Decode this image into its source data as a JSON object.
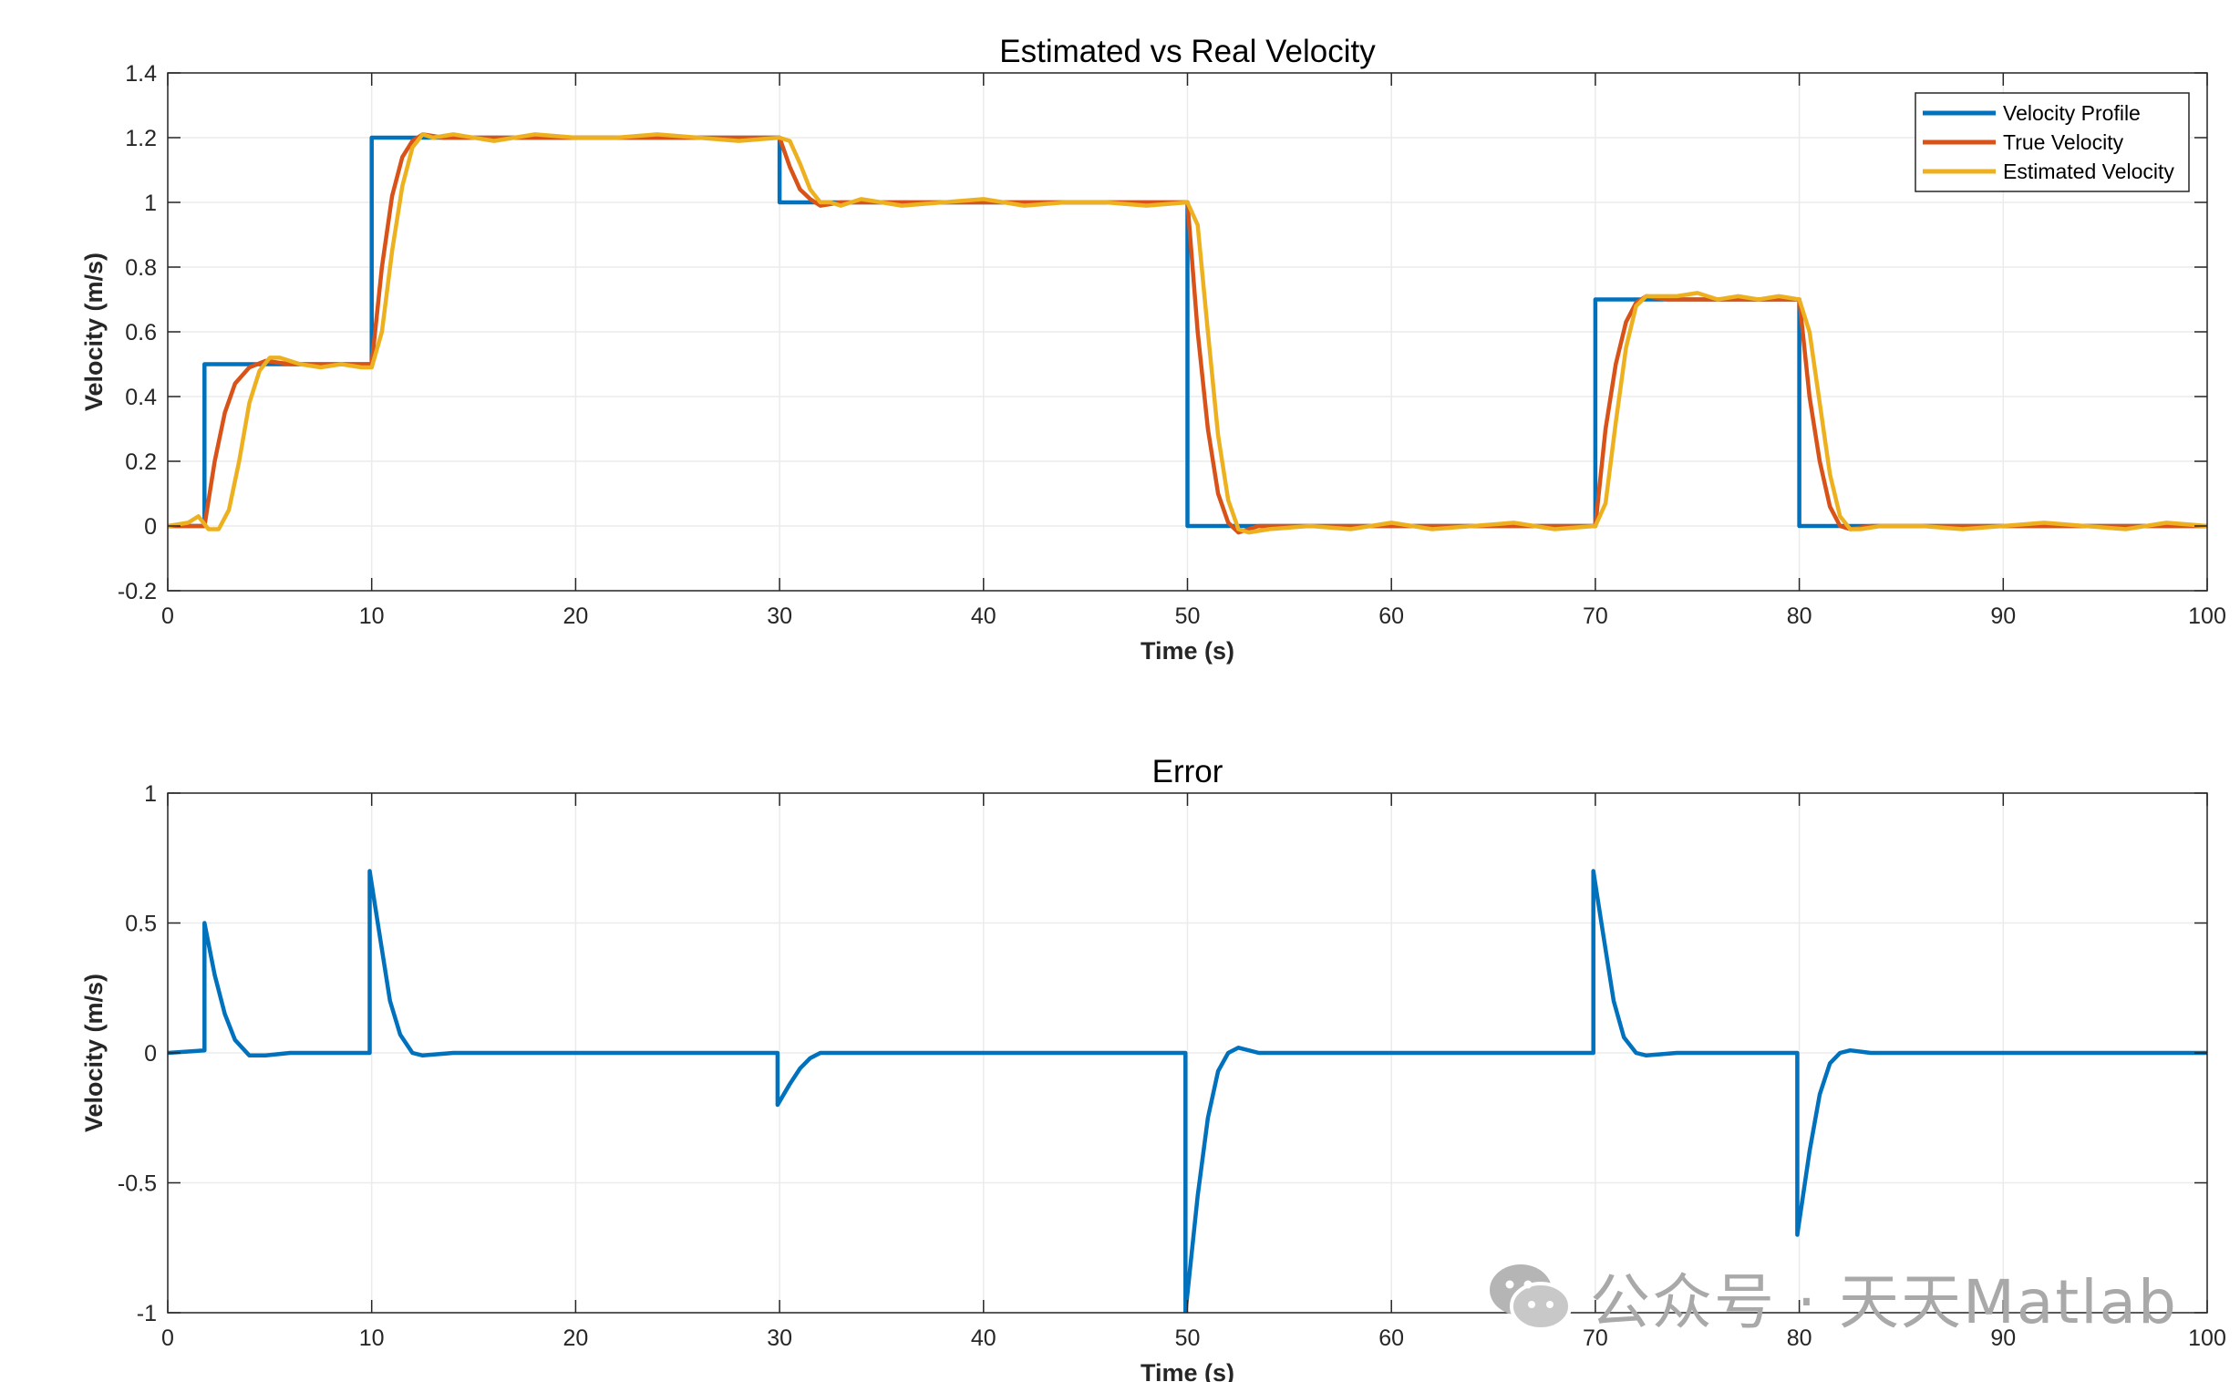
{
  "chart_data": [
    {
      "type": "line",
      "title": "Estimated vs Real Velocity",
      "xlabel": "Time (s)",
      "ylabel": "Velocity (m/s)",
      "xlim": [
        0,
        100
      ],
      "ylim": [
        -0.2,
        1.4
      ],
      "xticks": [
        "0",
        "10",
        "20",
        "30",
        "40",
        "50",
        "60",
        "70",
        "80",
        "90",
        "100"
      ],
      "yticks": [
        "-0.2",
        "0",
        "0.2",
        "0.4",
        "0.6",
        "0.8",
        "1",
        "1.2",
        "1.4"
      ],
      "grid": true,
      "legend_position": "top-right",
      "series": [
        {
          "name": "Velocity Profile",
          "color": "#0072BD",
          "x": [
            0,
            1.8,
            1.8,
            10,
            10,
            30,
            30,
            50,
            50,
            70,
            70,
            80,
            80,
            100
          ],
          "y": [
            0,
            0,
            0.5,
            0.5,
            1.2,
            1.2,
            1.0,
            1.0,
            0,
            0,
            0.7,
            0.7,
            0,
            0
          ]
        },
        {
          "name": "True Velocity",
          "color": "#D95319",
          "x": [
            0,
            1.8,
            2.3,
            2.8,
            3.3,
            4.0,
            4.8,
            6,
            10,
            10.5,
            11.0,
            11.5,
            12.0,
            12.5,
            13.5,
            30,
            30.5,
            31.0,
            31.5,
            32.0,
            33,
            50,
            50.5,
            51.0,
            51.5,
            52.0,
            52.5,
            53.5,
            70,
            70.5,
            71.0,
            71.5,
            72.0,
            72.5,
            73.5,
            80,
            80.5,
            81.0,
            81.5,
            82.0,
            82.5,
            83.5,
            100
          ],
          "y": [
            0,
            0,
            0.2,
            0.35,
            0.44,
            0.49,
            0.51,
            0.5,
            0.5,
            0.8,
            1.02,
            1.14,
            1.19,
            1.21,
            1.2,
            1.2,
            1.11,
            1.04,
            1.01,
            0.99,
            1.0,
            1.0,
            0.6,
            0.3,
            0.1,
            0.01,
            -0.02,
            0,
            0,
            0.3,
            0.5,
            0.63,
            0.69,
            0.71,
            0.7,
            0.7,
            0.4,
            0.2,
            0.06,
            0.0,
            -0.01,
            0,
            0
          ]
        },
        {
          "name": "Estimated Velocity",
          "color": "#EDB120",
          "x": [
            0,
            1,
            1.5,
            2.0,
            2.5,
            3.0,
            3.5,
            4.0,
            4.5,
            5.0,
            5.5,
            6.5,
            7.5,
            8.5,
            9.5,
            10.0,
            10.5,
            11.0,
            11.5,
            12.0,
            12.5,
            13.0,
            14,
            16,
            18,
            20,
            22,
            24,
            26,
            28,
            30.0,
            30.5,
            31.0,
            31.5,
            32.0,
            32.5,
            33.0,
            34,
            36,
            38,
            40,
            42,
            44,
            46,
            48,
            50.0,
            50.5,
            51.0,
            51.5,
            52.0,
            52.5,
            53.0,
            54,
            56,
            58,
            60,
            62,
            64,
            66,
            68,
            70.0,
            70.5,
            71.0,
            71.5,
            72.0,
            72.5,
            73.0,
            74,
            75,
            76,
            77,
            78,
            79,
            80.0,
            80.5,
            81.0,
            81.5,
            82.0,
            82.5,
            83.0,
            84,
            86,
            88,
            90,
            92,
            94,
            96,
            98,
            100
          ],
          "y": [
            0,
            0.01,
            0.03,
            -0.01,
            -0.01,
            0.05,
            0.2,
            0.38,
            0.48,
            0.52,
            0.52,
            0.5,
            0.49,
            0.5,
            0.49,
            0.49,
            0.6,
            0.85,
            1.05,
            1.17,
            1.21,
            1.2,
            1.21,
            1.19,
            1.21,
            1.2,
            1.2,
            1.21,
            1.2,
            1.19,
            1.2,
            1.19,
            1.12,
            1.04,
            1.0,
            1.0,
            0.99,
            1.01,
            0.99,
            1.0,
            1.01,
            0.99,
            1.0,
            1.0,
            0.99,
            1.0,
            0.93,
            0.6,
            0.28,
            0.08,
            -0.01,
            -0.02,
            -0.01,
            0.0,
            -0.01,
            0.01,
            -0.01,
            0.0,
            0.01,
            -0.01,
            0.0,
            0.07,
            0.32,
            0.55,
            0.68,
            0.71,
            0.71,
            0.71,
            0.72,
            0.7,
            0.71,
            0.7,
            0.71,
            0.7,
            0.6,
            0.38,
            0.16,
            0.03,
            -0.01,
            -0.01,
            0.0,
            0.0,
            -0.01,
            0.0,
            0.01,
            0.0,
            -0.01,
            0.01,
            0.0
          ]
        }
      ]
    },
    {
      "type": "line",
      "title": "Error",
      "xlabel": "Time (s)",
      "ylabel": "Velocity (m/s)",
      "xlim": [
        0,
        100
      ],
      "ylim": [
        -1,
        1
      ],
      "xticks": [
        "0",
        "10",
        "20",
        "30",
        "40",
        "50",
        "60",
        "70",
        "80",
        "90",
        "100"
      ],
      "yticks": [
        "-1",
        "-0.5",
        "0",
        "0.5",
        "1"
      ],
      "grid": true,
      "series": [
        {
          "color": "#0072BD",
          "x": [
            0,
            1.8,
            1.8,
            2.3,
            2.8,
            3.3,
            4.0,
            4.8,
            6,
            9.9,
            9.9,
            10.4,
            10.9,
            11.4,
            12.0,
            12.5,
            14,
            18,
            22,
            26,
            29.9,
            29.9,
            30.5,
            31.0,
            31.5,
            32.0,
            33,
            37,
            41,
            45,
            49.9,
            49.9,
            50.5,
            51.0,
            51.5,
            52.0,
            52.5,
            53.5,
            57,
            61,
            65,
            69.9,
            69.9,
            70.4,
            70.9,
            71.4,
            72.0,
            72.5,
            74,
            78,
            79.9,
            79.9,
            80.5,
            81.0,
            81.5,
            82.0,
            82.5,
            83.5,
            87,
            91,
            95,
            100
          ],
          "y": [
            0,
            0.01,
            0.5,
            0.3,
            0.15,
            0.05,
            -0.01,
            -0.01,
            0.0,
            0.0,
            0.7,
            0.45,
            0.2,
            0.07,
            0.0,
            -0.01,
            0.0,
            0.0,
            0.0,
            0.0,
            0.0,
            -0.2,
            -0.12,
            -0.06,
            -0.02,
            0.0,
            0.0,
            0.0,
            0.0,
            0.0,
            0.0,
            -1.0,
            -0.55,
            -0.25,
            -0.07,
            0.0,
            0.02,
            0.0,
            0.0,
            0.0,
            0.0,
            0.0,
            0.7,
            0.45,
            0.2,
            0.06,
            0.0,
            -0.01,
            0.0,
            0.0,
            0.0,
            -0.7,
            -0.38,
            -0.16,
            -0.04,
            0.0,
            0.01,
            0.0,
            0.0,
            0.0,
            0.0,
            0.0
          ]
        }
      ]
    }
  ],
  "watermark": {
    "text": "公众号 · 天天Matlab",
    "icon": "wechat-icon"
  }
}
